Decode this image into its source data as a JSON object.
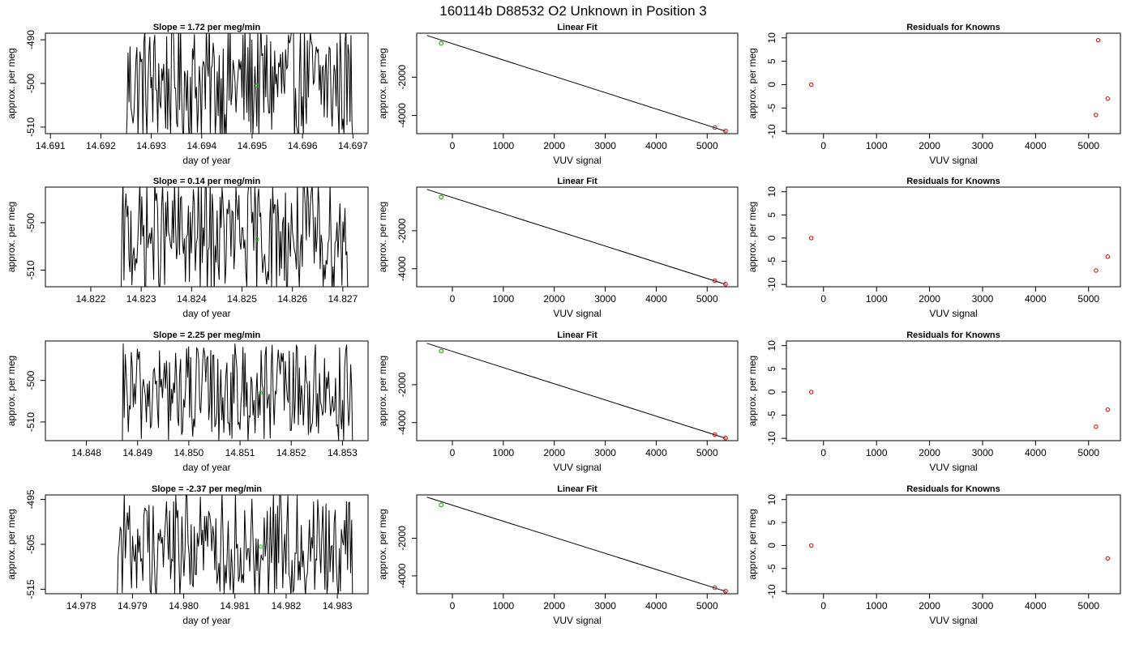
{
  "figure": {
    "title": "160114b     D88532   O2 Unknown in Position  3"
  },
  "colors": {
    "line": "#000000",
    "known_points": "#cc0000",
    "unknown_point": "#00cc00",
    "frame": "#000000"
  },
  "chart_data": [
    {
      "type": "line",
      "row": 1,
      "col": 1,
      "title": "Slope =  1.72  per meg/min",
      "xlabel": "day of year",
      "ylabel": "approx. per meg",
      "xlim": [
        14.6909,
        14.6973
      ],
      "ylim": [
        -511.5,
        -488.5
      ],
      "xticks": [
        14.691,
        14.692,
        14.693,
        14.694,
        14.695,
        14.696,
        14.697
      ],
      "xtick_labels": [
        "14.691",
        "14.692",
        "14.693",
        "14.694",
        "14.695",
        "14.696",
        "14.697"
      ],
      "yticks": [
        -490,
        -500,
        -510
      ],
      "ytick_labels": [
        "-490",
        "-500",
        "-510"
      ],
      "x_start": 14.6925,
      "x_end": 14.697,
      "n_points": 230,
      "y_center": -500,
      "y_spread": 14,
      "marker": {
        "x": 14.6951,
        "y": -500.5
      }
    },
    {
      "type": "scatter",
      "row": 1,
      "col": 2,
      "title": "Linear Fit",
      "xlabel": "VUV signal",
      "ylabel": "approx. per meg",
      "xlim": [
        -700,
        5600
      ],
      "ylim": [
        -4950,
        300
      ],
      "xticks": [
        0,
        1000,
        2000,
        3000,
        4000,
        5000
      ],
      "xtick_labels": [
        "0",
        "1000",
        "2000",
        "3000",
        "4000",
        "5000"
      ],
      "yticks": [
        -2000,
        -4000
      ],
      "ytick_labels": [
        "-2000",
        "-4000"
      ],
      "fit_line": {
        "x": [
          -500,
          5370
        ],
        "y": [
          180,
          -4830
        ]
      },
      "knowns": {
        "x": [
          -220,
          5150,
          5360
        ],
        "y": [
          -230,
          -4630,
          -4810
        ]
      },
      "unknown": {
        "x": -220,
        "y": -230
      }
    },
    {
      "type": "scatter",
      "row": 1,
      "col": 3,
      "title": "Residuals for Knowns",
      "xlabel": "VUV signal",
      "ylabel": "approx. per meg",
      "xlim": [
        -700,
        5600
      ],
      "ylim": [
        -10.5,
        11
      ],
      "xticks": [
        0,
        1000,
        2000,
        3000,
        4000,
        5000
      ],
      "xtick_labels": [
        "0",
        "1000",
        "2000",
        "3000",
        "4000",
        "5000"
      ],
      "yticks": [
        10,
        5,
        0,
        -5,
        -10
      ],
      "ytick_labels": [
        "10",
        "5",
        "0",
        "-5",
        "-10"
      ],
      "x": [
        -230,
        5180,
        5140,
        5360
      ],
      "y": [
        0,
        9.5,
        -6.5,
        -3
      ]
    },
    {
      "type": "line",
      "row": 2,
      "col": 1,
      "title": "Slope =  0.14  per meg/min",
      "xlabel": "day of year",
      "ylabel": "approx. per meg",
      "xlim": [
        14.8211,
        14.8275
      ],
      "ylim": [
        -513.5,
        -492.5
      ],
      "xticks": [
        14.822,
        14.823,
        14.824,
        14.825,
        14.826,
        14.827
      ],
      "xtick_labels": [
        "14.822",
        "14.823",
        "14.824",
        "14.825",
        "14.826",
        "14.827"
      ],
      "yticks": [
        -500,
        -510
      ],
      "ytick_labels": [
        "-500",
        "-510"
      ],
      "x_start": 14.8226,
      "x_end": 14.8271,
      "n_points": 230,
      "y_center": -503,
      "y_spread": 12,
      "marker": {
        "x": 14.8253,
        "y": -503.5
      }
    },
    {
      "type": "scatter",
      "row": 2,
      "col": 2,
      "title": "Linear Fit",
      "xlabel": "VUV signal",
      "ylabel": "approx. per meg",
      "xlim": [
        -700,
        5600
      ],
      "ylim": [
        -4950,
        300
      ],
      "xticks": [
        0,
        1000,
        2000,
        3000,
        4000,
        5000
      ],
      "xtick_labels": [
        "0",
        "1000",
        "2000",
        "3000",
        "4000",
        "5000"
      ],
      "yticks": [
        -2000,
        -4000
      ],
      "ytick_labels": [
        "-2000",
        "-4000"
      ],
      "fit_line": {
        "x": [
          -500,
          5370
        ],
        "y": [
          180,
          -4830
        ]
      },
      "knowns": {
        "x": [
          -220,
          5150,
          5360
        ],
        "y": [
          -230,
          -4630,
          -4810
        ]
      },
      "unknown": {
        "x": -220,
        "y": -230
      }
    },
    {
      "type": "scatter",
      "row": 2,
      "col": 3,
      "title": "Residuals for Knowns",
      "xlabel": "VUV signal",
      "ylabel": "approx. per meg",
      "xlim": [
        -700,
        5600
      ],
      "ylim": [
        -10.5,
        11
      ],
      "xticks": [
        0,
        1000,
        2000,
        3000,
        4000,
        5000
      ],
      "xtick_labels": [
        "0",
        "1000",
        "2000",
        "3000",
        "4000",
        "5000"
      ],
      "yticks": [
        10,
        5,
        0,
        -5,
        -10
      ],
      "ytick_labels": [
        "10",
        "5",
        "0",
        "-5",
        "-10"
      ],
      "x": [
        -230,
        5140,
        5360
      ],
      "y": [
        0,
        -7,
        -4
      ]
    },
    {
      "type": "line",
      "row": 3,
      "col": 1,
      "title": "Slope =  2.25  per meg/min",
      "xlabel": "day of year",
      "ylabel": "approx. per meg",
      "xlim": [
        14.8472,
        14.8535
      ],
      "ylim": [
        -514.5,
        -490.5
      ],
      "xticks": [
        14.848,
        14.849,
        14.85,
        14.851,
        14.852,
        14.853
      ],
      "xtick_labels": [
        "14.848",
        "14.849",
        "14.850",
        "14.851",
        "14.852",
        "14.853"
      ],
      "yticks": [
        -500,
        -510
      ],
      "ytick_labels": [
        "-500",
        "-510"
      ],
      "x_start": 14.8487,
      "x_end": 14.8532,
      "n_points": 230,
      "y_center": -503,
      "y_spread": 12,
      "marker": {
        "x": 14.8514,
        "y": -503
      }
    },
    {
      "type": "scatter",
      "row": 3,
      "col": 2,
      "title": "Linear Fit",
      "xlabel": "VUV signal",
      "ylabel": "approx. per meg",
      "xlim": [
        -700,
        5600
      ],
      "ylim": [
        -4950,
        300
      ],
      "xticks": [
        0,
        1000,
        2000,
        3000,
        4000,
        5000
      ],
      "xtick_labels": [
        "0",
        "1000",
        "2000",
        "3000",
        "4000",
        "5000"
      ],
      "yticks": [
        -2000,
        -4000
      ],
      "ytick_labels": [
        "-2000",
        "-4000"
      ],
      "fit_line": {
        "x": [
          -500,
          5370
        ],
        "y": [
          180,
          -4830
        ]
      },
      "knowns": {
        "x": [
          -220,
          5150,
          5360
        ],
        "y": [
          -230,
          -4630,
          -4810
        ]
      },
      "unknown": {
        "x": -220,
        "y": -230
      }
    },
    {
      "type": "scatter",
      "row": 3,
      "col": 3,
      "title": "Residuals for Knowns",
      "xlabel": "VUV signal",
      "ylabel": "approx. per meg",
      "xlim": [
        -700,
        5600
      ],
      "ylim": [
        -10.5,
        11
      ],
      "xticks": [
        0,
        1000,
        2000,
        3000,
        4000,
        5000
      ],
      "xtick_labels": [
        "0",
        "1000",
        "2000",
        "3000",
        "4000",
        "5000"
      ],
      "yticks": [
        10,
        5,
        0,
        -5,
        -10
      ],
      "ytick_labels": [
        "10",
        "5",
        "0",
        "-5",
        "-10"
      ],
      "x": [
        -230,
        5140,
        5360
      ],
      "y": [
        0,
        -7.5,
        -3.8
      ]
    },
    {
      "type": "line",
      "row": 4,
      "col": 1,
      "title": "Slope =  -2.37  per meg/min",
      "xlabel": "day of year",
      "ylabel": "approx. per meg",
      "xlim": [
        14.9773,
        14.9836
      ],
      "ylim": [
        -516,
        -494
      ],
      "xticks": [
        14.978,
        14.979,
        14.98,
        14.981,
        14.982,
        14.983
      ],
      "xtick_labels": [
        "14.978",
        "14.979",
        "14.980",
        "14.981",
        "14.982",
        "14.983"
      ],
      "yticks": [
        -495,
        -505,
        -515
      ],
      "ytick_labels": [
        "-495",
        "-505",
        "-515"
      ],
      "x_start": 14.9787,
      "x_end": 14.9833,
      "n_points": 230,
      "y_center": -505,
      "y_spread": 12,
      "marker": {
        "x": 14.9815,
        "y": -505.5
      }
    },
    {
      "type": "scatter",
      "row": 4,
      "col": 2,
      "title": "Linear Fit",
      "xlabel": "VUV signal",
      "ylabel": "approx. per meg",
      "xlim": [
        -700,
        5600
      ],
      "ylim": [
        -4950,
        300
      ],
      "xticks": [
        0,
        1000,
        2000,
        3000,
        4000,
        5000
      ],
      "xtick_labels": [
        "0",
        "1000",
        "2000",
        "3000",
        "4000",
        "5000"
      ],
      "yticks": [
        -2000,
        -4000
      ],
      "ytick_labels": [
        "-2000",
        "-4000"
      ],
      "fit_line": {
        "x": [
          -500,
          5370
        ],
        "y": [
          180,
          -4830
        ]
      },
      "knowns": {
        "x": [
          -220,
          5150,
          5360
        ],
        "y": [
          -230,
          -4630,
          -4810
        ]
      },
      "unknown": {
        "x": -220,
        "y": -230
      }
    },
    {
      "type": "scatter",
      "row": 4,
      "col": 3,
      "title": "Residuals for Knowns",
      "xlabel": "VUV signal",
      "ylabel": "approx. per meg",
      "xlim": [
        -700,
        5600
      ],
      "ylim": [
        -10.5,
        11
      ],
      "xticks": [
        0,
        1000,
        2000,
        3000,
        4000,
        5000
      ],
      "xtick_labels": [
        "0",
        "1000",
        "2000",
        "3000",
        "4000",
        "5000"
      ],
      "yticks": [
        10,
        5,
        0,
        -5,
        -10
      ],
      "ytick_labels": [
        "10",
        "5",
        "0",
        "-5",
        "-10"
      ],
      "x": [
        -230,
        5360
      ],
      "y": [
        0,
        -2.8
      ]
    }
  ]
}
